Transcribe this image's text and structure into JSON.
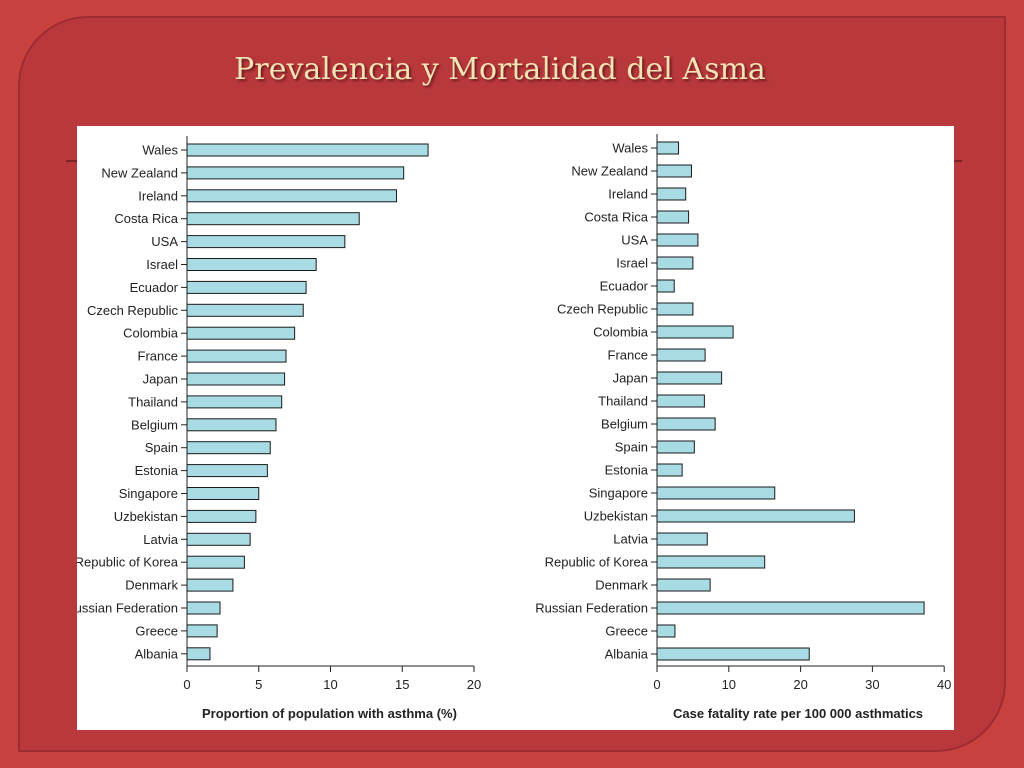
{
  "slide": {
    "title": "Prevalencia y Mortalidad del Asma"
  },
  "colors": {
    "background": "#c8413f",
    "panel": "#b8383c",
    "bar_fill": "#a8dbe4",
    "title_text": "#f3e3b5"
  },
  "chart_data": [
    {
      "type": "bar",
      "orientation": "horizontal",
      "categories": [
        "Wales",
        "New Zealand",
        "Ireland",
        "Costa Rica",
        "USA",
        "Israel",
        "Ecuador",
        "Czech Republic",
        "Colombia",
        "France",
        "Japan",
        "Thailand",
        "Belgium",
        "Spain",
        "Estonia",
        "Singapore",
        "Uzbekistan",
        "Latvia",
        "Republic of Korea",
        "Denmark",
        "Russian Federation",
        "Greece",
        "Albania"
      ],
      "values": [
        16.8,
        15.1,
        14.6,
        12.0,
        11.0,
        9.0,
        8.3,
        8.1,
        7.5,
        6.9,
        6.8,
        6.6,
        6.2,
        5.8,
        5.6,
        5.0,
        4.8,
        4.4,
        4.0,
        3.2,
        2.3,
        2.1,
        1.6
      ],
      "xlabel": "Proportion of population with asthma (%)",
      "xlim": [
        0,
        20
      ],
      "xticks": [
        0,
        5,
        10,
        15,
        20
      ]
    },
    {
      "type": "bar",
      "orientation": "horizontal",
      "categories": [
        "Wales",
        "New Zealand",
        "Ireland",
        "Costa Rica",
        "USA",
        "Israel",
        "Ecuador",
        "Czech Republic",
        "Colombia",
        "France",
        "Japan",
        "Thailand",
        "Belgium",
        "Spain",
        "Estonia",
        "Singapore",
        "Uzbekistan",
        "Latvia",
        "Republic of Korea",
        "Denmark",
        "Russian Federation",
        "Greece",
        "Albania"
      ],
      "values": [
        3.0,
        4.8,
        4.0,
        4.4,
        5.7,
        5.0,
        2.4,
        5.0,
        10.6,
        6.7,
        9.0,
        6.6,
        8.1,
        5.2,
        3.5,
        16.4,
        27.5,
        7.0,
        15.0,
        7.4,
        37.2,
        2.5,
        21.2
      ],
      "xlabel": "Case fatality rate per 100 000 asthmatics",
      "xlim": [
        0,
        40
      ],
      "xticks": [
        0,
        10,
        20,
        30,
        40
      ]
    }
  ]
}
